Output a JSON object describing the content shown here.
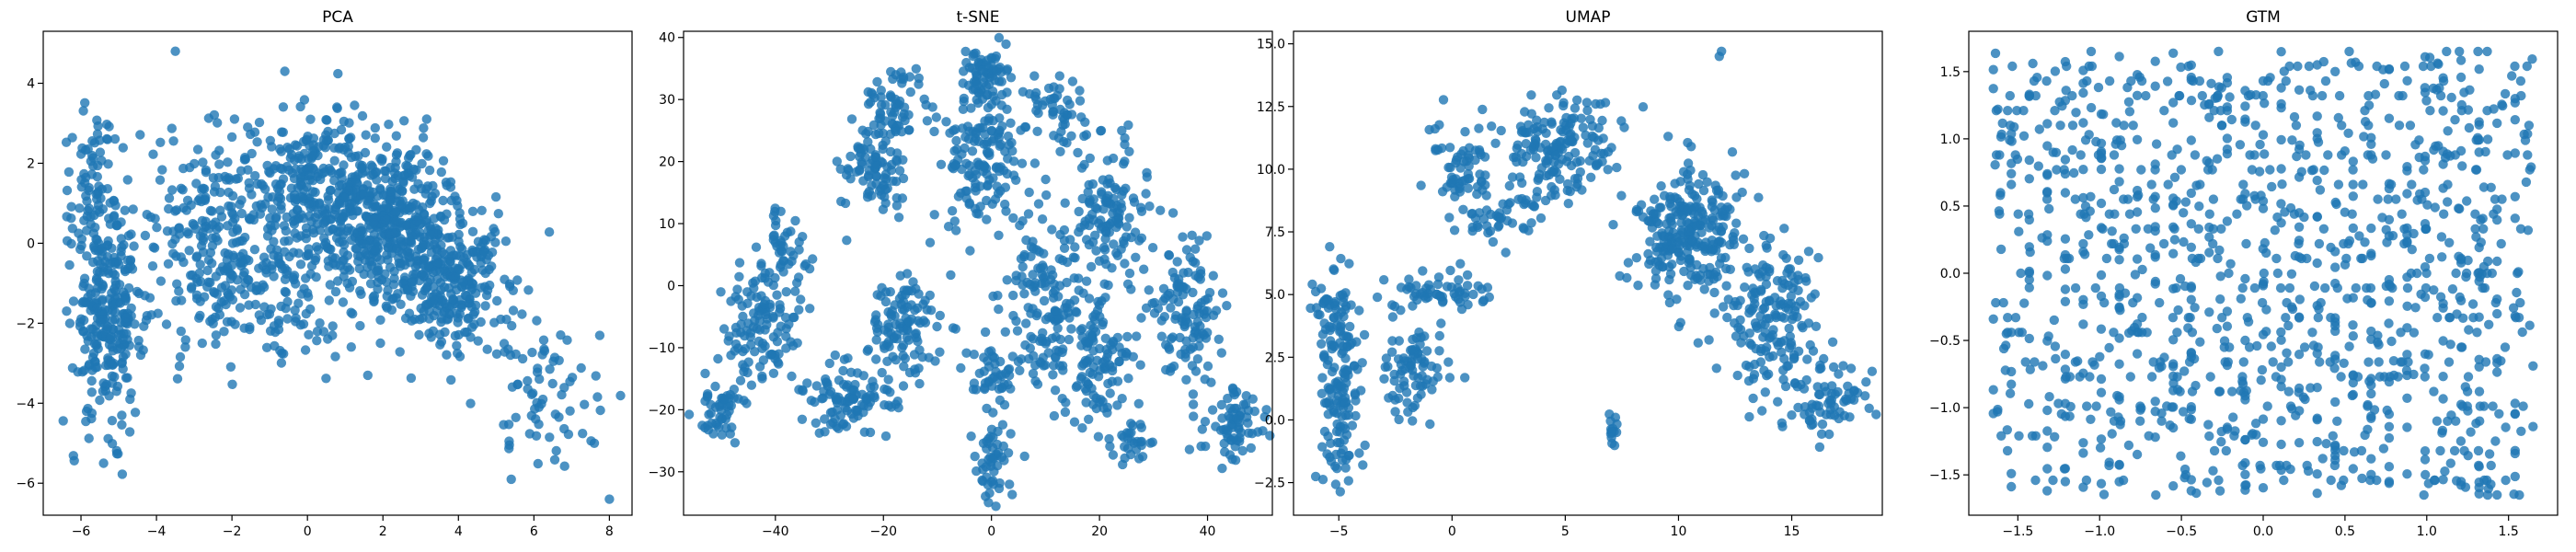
{
  "chart_data": [
    {
      "type": "scatter",
      "title": "PCA",
      "xlabel": "",
      "ylabel": "",
      "xlim": [
        -7,
        8.6
      ],
      "ylim": [
        -6.8,
        5.3
      ],
      "xticks": [
        -6,
        -4,
        -2,
        0,
        2,
        4,
        6,
        8
      ],
      "yticks": [
        -6,
        -4,
        -2,
        0,
        2,
        4
      ],
      "color": "#1f77b4",
      "clusters": [
        {
          "cx": -5.3,
          "cy": -2.0,
          "sx": 0.45,
          "sy": 1.2,
          "n": 260
        },
        {
          "cx": -5.6,
          "cy": 1.3,
          "sx": 0.45,
          "sy": 1.0,
          "n": 90
        },
        {
          "cx": -2.5,
          "cy": 0.3,
          "sx": 1.0,
          "sy": 1.3,
          "n": 230
        },
        {
          "cx": 0.3,
          "cy": 1.3,
          "sx": 0.9,
          "sy": 1.1,
          "n": 300
        },
        {
          "cx": 2.2,
          "cy": 0.5,
          "sx": 0.9,
          "sy": 1.0,
          "n": 420
        },
        {
          "cx": 3.9,
          "cy": -1.0,
          "sx": 0.8,
          "sy": 0.9,
          "n": 260
        },
        {
          "cx": 6.3,
          "cy": -3.8,
          "sx": 0.8,
          "sy": 0.8,
          "n": 70
        },
        {
          "cx": -1.2,
          "cy": -1.5,
          "sx": 1.2,
          "sy": 0.7,
          "n": 110
        }
      ],
      "points": [
        [
          -5.4,
          -5.5
        ],
        [
          8.0,
          -6.4
        ],
        [
          -3.5,
          4.8
        ],
        [
          -0.6,
          4.3
        ],
        [
          1.6,
          -3.3
        ],
        [
          7.6,
          -5.0
        ],
        [
          5.4,
          -5.9
        ]
      ]
    },
    {
      "type": "scatter",
      "title": "t-SNE",
      "xlabel": "",
      "ylabel": "",
      "xlim": [
        -57,
        52
      ],
      "ylim": [
        -37,
        41
      ],
      "xticks": [
        -40,
        -20,
        0,
        20,
        40
      ],
      "yticks": [
        -30,
        -20,
        -10,
        0,
        10,
        20,
        30,
        40
      ],
      "color": "#1f77b4",
      "clusters": [
        {
          "cx": -50,
          "cy": -20,
          "sx": 2.5,
          "sy": 3.0,
          "n": 50
        },
        {
          "cx": -42,
          "cy": -7,
          "sx": 3.5,
          "sy": 5.0,
          "n": 120
        },
        {
          "cx": -38,
          "cy": 6,
          "sx": 2.0,
          "sy": 3.5,
          "n": 40
        },
        {
          "cx": -26,
          "cy": -18,
          "sx": 4.0,
          "sy": 3.0,
          "n": 100
        },
        {
          "cx": -22,
          "cy": 18,
          "sx": 3.0,
          "sy": 4.0,
          "n": 90
        },
        {
          "cx": -18,
          "cy": 29,
          "sx": 3.0,
          "sy": 3.0,
          "n": 60
        },
        {
          "cx": -16,
          "cy": -6,
          "sx": 3.5,
          "sy": 4.0,
          "n": 110
        },
        {
          "cx": -1,
          "cy": 34,
          "sx": 2.0,
          "sy": 2.0,
          "n": 70
        },
        {
          "cx": -2,
          "cy": 20,
          "sx": 4.0,
          "sy": 5.0,
          "n": 140
        },
        {
          "cx": 0,
          "cy": -28,
          "sx": 1.5,
          "sy": 3.5,
          "n": 50
        },
        {
          "cx": 0,
          "cy": -15,
          "sx": 2.5,
          "sy": 2.0,
          "n": 40
        },
        {
          "cx": 10,
          "cy": -5,
          "sx": 5.0,
          "sy": 8.0,
          "n": 170
        },
        {
          "cx": 12,
          "cy": 28,
          "sx": 3.0,
          "sy": 3.0,
          "n": 50
        },
        {
          "cx": 22,
          "cy": 12,
          "sx": 4.0,
          "sy": 6.0,
          "n": 130
        },
        {
          "cx": 20,
          "cy": -12,
          "sx": 3.0,
          "sy": 6.0,
          "n": 90
        },
        {
          "cx": 26,
          "cy": -25,
          "sx": 2.0,
          "sy": 1.5,
          "n": 30
        },
        {
          "cx": 36,
          "cy": -5,
          "sx": 3.5,
          "sy": 7.0,
          "n": 120
        },
        {
          "cx": 45,
          "cy": -22,
          "sx": 3.0,
          "sy": 3.0,
          "n": 70
        }
      ],
      "points": []
    },
    {
      "type": "scatter",
      "title": "UMAP",
      "xlabel": "",
      "ylabel": "",
      "xlim": [
        -7,
        19
      ],
      "ylim": [
        -3.8,
        15.5
      ],
      "xticks": [
        -5,
        0,
        5,
        10,
        15
      ],
      "yticks": [
        -2.5,
        0.0,
        2.5,
        5.0,
        7.5,
        10.0,
        12.5,
        15.0
      ],
      "color": "#1f77b4",
      "clusters": [
        {
          "cx": -5.0,
          "cy": 1.0,
          "sx": 0.4,
          "sy": 2.0,
          "n": 140
        },
        {
          "cx": -5.5,
          "cy": 4.5,
          "sx": 0.4,
          "sy": 0.8,
          "n": 30
        },
        {
          "cx": -1.8,
          "cy": 2.0,
          "sx": 0.8,
          "sy": 1.0,
          "n": 80
        },
        {
          "cx": -0.5,
          "cy": 5.0,
          "sx": 1.2,
          "sy": 0.5,
          "n": 60
        },
        {
          "cx": 0.3,
          "cy": 10.0,
          "sx": 0.8,
          "sy": 1.2,
          "n": 60
        },
        {
          "cx": 2.2,
          "cy": 8.0,
          "sx": 0.8,
          "sy": 0.6,
          "n": 40
        },
        {
          "cx": 4.5,
          "cy": 11.0,
          "sx": 1.5,
          "sy": 1.0,
          "n": 170
        },
        {
          "cx": 7.1,
          "cy": -0.4,
          "sx": 0.15,
          "sy": 0.3,
          "n": 15
        },
        {
          "cx": 10.5,
          "cy": 7.5,
          "sx": 1.3,
          "sy": 1.3,
          "n": 260
        },
        {
          "cx": 14.0,
          "cy": 4.0,
          "sx": 1.2,
          "sy": 1.5,
          "n": 160
        },
        {
          "cx": 16.5,
          "cy": 1.0,
          "sx": 1.0,
          "sy": 1.0,
          "n": 80
        }
      ],
      "points": [
        [
          11.9,
          14.7
        ],
        [
          11.8,
          14.5
        ]
      ]
    },
    {
      "type": "scatter",
      "title": "GTM",
      "xlabel": "",
      "ylabel": "",
      "xlim": [
        -1.8,
        1.8
      ],
      "ylim": [
        -1.8,
        1.8
      ],
      "xticks": [
        -1.5,
        -1.0,
        -0.5,
        0.0,
        0.5,
        1.0,
        1.5
      ],
      "yticks": [
        -1.5,
        -1.0,
        -0.5,
        0.0,
        0.5,
        1.0,
        1.5
      ],
      "color": "#1f77b4",
      "grid_layout": {
        "range": [
          -1.65,
          1.65
        ],
        "step": 0.11,
        "n": 1200
      },
      "clusters": [],
      "points": []
    }
  ]
}
